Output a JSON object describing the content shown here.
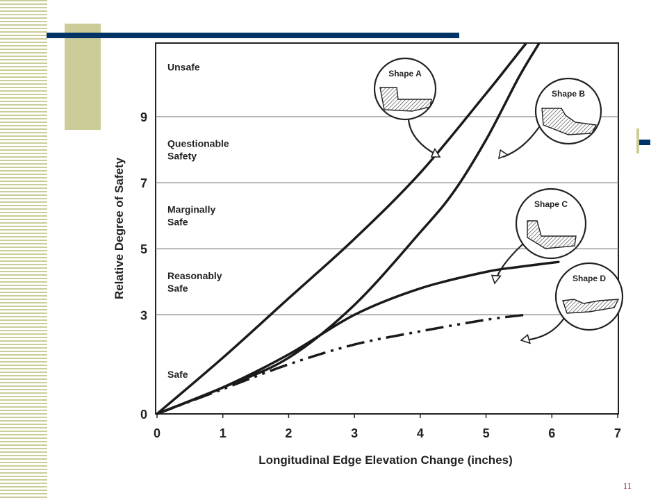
{
  "slide": {
    "page_number": "11",
    "colors": {
      "accent_navy": "#003366",
      "accent_tan": "#cccc99",
      "stripe": "#cccc99",
      "page_number": "#993333"
    }
  },
  "chart_data": {
    "type": "line",
    "title": "",
    "xlabel": "Longitudinal Edge Elevation Change (inches)",
    "ylabel": "Relative Degree of Safety",
    "xlim": [
      0,
      7
    ],
    "ylim": [
      0,
      11
    ],
    "x_ticks": [
      "0",
      "1",
      "2",
      "3",
      "4",
      "5",
      "6",
      "7"
    ],
    "y_ticks": [
      {
        "value": 0,
        "label": "0"
      },
      {
        "value": 3,
        "label": "3"
      },
      {
        "value": 5,
        "label": "5"
      },
      {
        "value": 7,
        "label": "7"
      },
      {
        "value": 9,
        "label": "9"
      }
    ],
    "grid": "horizontal at 3, 5, 7, 9",
    "zones": [
      {
        "label": [
          "Unsafe"
        ],
        "y": 10.5
      },
      {
        "label": [
          "Questionable",
          "Safety"
        ],
        "y": 8.0
      },
      {
        "label": [
          "Marginally",
          "Safe"
        ],
        "y": 6.0
      },
      {
        "label": [
          "Reasonably",
          "Safe"
        ],
        "y": 4.0
      },
      {
        "label": [
          "Safe"
        ],
        "y": 1.2
      }
    ],
    "series": [
      {
        "name": "Shape A",
        "style": "solid",
        "x": [
          0,
          1,
          2,
          3,
          4,
          5,
          5.4,
          5.6
        ],
        "y": [
          0,
          1.7,
          3.5,
          5.3,
          7.3,
          9.7,
          10.7,
          11.2
        ]
      },
      {
        "name": "Shape B",
        "style": "solid",
        "x": [
          0,
          1,
          2,
          3,
          4,
          4.5,
          5,
          5.5,
          5.8
        ],
        "y": [
          0,
          0.8,
          1.7,
          3.3,
          5.5,
          6.7,
          8.3,
          10.2,
          11.2
        ]
      },
      {
        "name": "Shape C",
        "style": "solid",
        "x": [
          0,
          1,
          2,
          3,
          4,
          5,
          5.5,
          6.1
        ],
        "y": [
          0,
          0.8,
          1.8,
          3.0,
          3.8,
          4.3,
          4.45,
          4.6
        ]
      },
      {
        "name": "Shape D",
        "style": "dash-dot-dot",
        "x": [
          0,
          1,
          2,
          3,
          4,
          5,
          5.6
        ],
        "y": [
          0,
          0.75,
          1.5,
          2.1,
          2.5,
          2.85,
          3.0
        ]
      }
    ]
  }
}
